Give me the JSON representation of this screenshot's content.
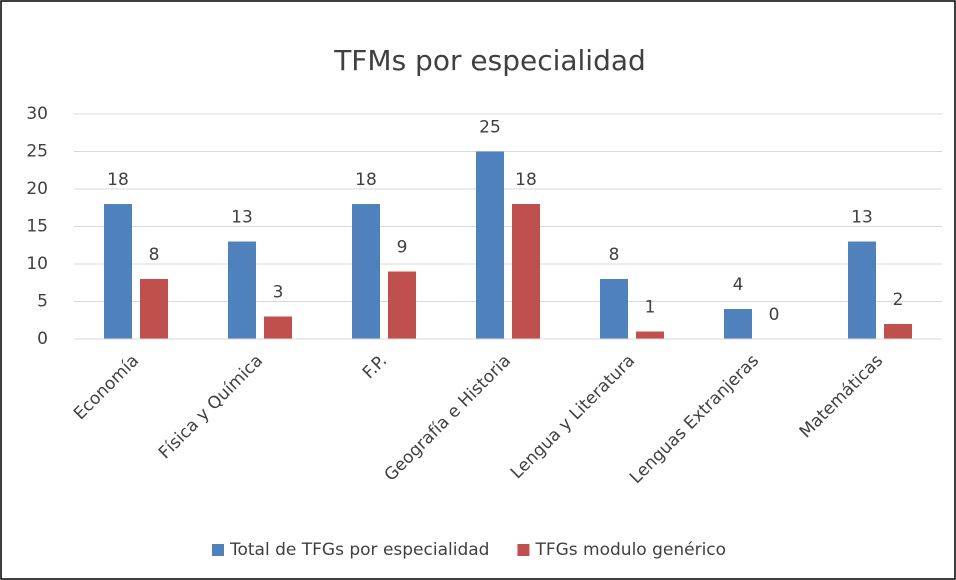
{
  "chart_data": {
    "type": "bar",
    "title": "TFMs por especialidad",
    "categories": [
      "Economía",
      "Física y Química",
      "F.P.",
      "Geografía e Historia",
      "Lengua y Literatura",
      "Lenguas Extranjeras",
      "Matemáticas"
    ],
    "series": [
      {
        "name": "Total de TFGs por especialidad",
        "color": "#4f81bd",
        "values": [
          18,
          13,
          18,
          25,
          8,
          4,
          13
        ]
      },
      {
        "name": "TFGs modulo genérico",
        "color": "#c0504d",
        "values": [
          8,
          3,
          9,
          18,
          1,
          0,
          2
        ]
      }
    ],
    "ylim": [
      0,
      30
    ],
    "yticks": [
      0,
      5,
      10,
      15,
      20,
      25,
      30
    ],
    "grid": true,
    "legend": "bottom"
  }
}
